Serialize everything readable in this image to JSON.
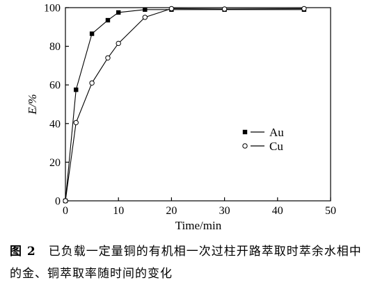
{
  "chart_data": {
    "type": "line",
    "title": "",
    "xlabel": "Time/min",
    "ylabel": "E/%",
    "xlim": [
      0,
      50
    ],
    "ylim": [
      0,
      100
    ],
    "xticks": [
      0,
      10,
      20,
      30,
      40,
      50
    ],
    "yticks": [
      0,
      20,
      40,
      60,
      80,
      100
    ],
    "grid": false,
    "legend_position": "center-right",
    "series": [
      {
        "name": "Au",
        "marker": "filled-square",
        "x": [
          0,
          2,
          5,
          8,
          10,
          15,
          20,
          30,
          45
        ],
        "y": [
          0,
          57.5,
          86.5,
          93.5,
          97.5,
          99,
          99,
          99,
          99
        ]
      },
      {
        "name": "Cu",
        "marker": "open-circle",
        "x": [
          0,
          2,
          5,
          8,
          10,
          15,
          20,
          30,
          45
        ],
        "y": [
          0,
          40.5,
          61,
          74,
          81.5,
          95,
          99.5,
          99.3,
          99.5
        ]
      }
    ]
  },
  "caption": {
    "label": "图 2",
    "text": "已负载一定量铜的有机相一次过柱开路萃取时萃余水相中的金、铜萃取率随时间的变化"
  },
  "colors": {
    "ink": "#000000",
    "background": "#ffffff"
  }
}
